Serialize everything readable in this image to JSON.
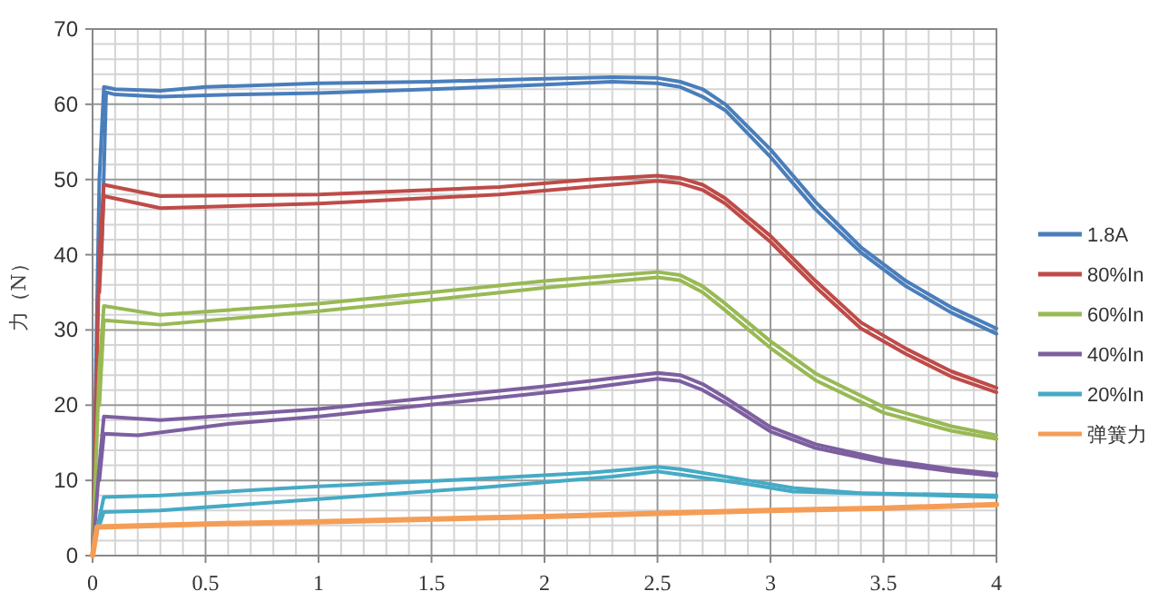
{
  "chart_data": {
    "type": "line",
    "ylabel": "力（N）",
    "xlim": [
      0,
      4
    ],
    "ylim": [
      0,
      70
    ],
    "xticks": [
      0,
      0.5,
      1,
      1.5,
      2,
      2.5,
      3,
      3.5,
      4
    ],
    "yticks": [
      0,
      10,
      20,
      30,
      40,
      50,
      60,
      70
    ],
    "grid": true,
    "legend": "right",
    "marker": "none",
    "line_style": "solid",
    "series": [
      {
        "name": "1.8A",
        "color": "#4a7ebb",
        "x": [
          0,
          0.03,
          0.05,
          0.1,
          0.3,
          0.5,
          1,
          1.5,
          2,
          2.3,
          2.5,
          2.6,
          2.7,
          2.8,
          3,
          3.2,
          3.4,
          3.6,
          3.8,
          4
        ],
        "values": [
          0,
          50,
          62.3,
          62,
          61.8,
          62.3,
          62.8,
          63,
          63.4,
          63.6,
          63.5,
          63,
          62,
          60,
          54,
          47,
          41,
          36.5,
          33,
          30.2
        ]
      },
      {
        "color": "#4a7ebb",
        "x": [
          0.04,
          0.06,
          0.1,
          0.3,
          0.5,
          1,
          1.5,
          2,
          2.3,
          2.5,
          2.6,
          2.7,
          2.8,
          3,
          3.2,
          3.4,
          3.6,
          3.8,
          4
        ],
        "values": [
          40,
          61.6,
          61.3,
          61,
          61.2,
          61.5,
          62,
          62.6,
          63,
          62.8,
          62.3,
          61,
          59.2,
          53,
          46,
          40.3,
          35.8,
          32.3,
          29.5
        ]
      },
      {
        "name": "80%In",
        "color": "#be4b48",
        "x": [
          0,
          0.03,
          0.05,
          0.3,
          1,
          1.8,
          2.2,
          2.5,
          2.6,
          2.7,
          2.8,
          3,
          3.2,
          3.4,
          3.6,
          3.8,
          4
        ],
        "values": [
          0,
          40,
          49.3,
          47.8,
          48,
          49,
          50,
          50.5,
          50.2,
          49.3,
          47.5,
          42.5,
          36.5,
          31,
          27.5,
          24.5,
          22.3
        ]
      },
      {
        "color": "#be4b48",
        "x": [
          0.03,
          0.05,
          0.3,
          1,
          1.8,
          2.3,
          2.5,
          2.6,
          2.7,
          2.8,
          3,
          3.2,
          3.4,
          3.6,
          3.8,
          4
        ],
        "values": [
          35,
          47.8,
          46.2,
          46.8,
          48,
          49.3,
          49.8,
          49.5,
          48.6,
          46.8,
          41.7,
          35.7,
          30.2,
          26.8,
          23.8,
          21.7
        ]
      },
      {
        "name": "60%In",
        "color": "#98b954",
        "x": [
          0,
          0.03,
          0.05,
          0.3,
          1,
          1.5,
          2,
          2.5,
          2.6,
          2.7,
          2.8,
          3,
          3.2,
          3.5,
          3.8,
          4
        ],
        "values": [
          0,
          25,
          33.2,
          32,
          33.5,
          35,
          36.5,
          37.7,
          37.3,
          35.8,
          33.5,
          28.5,
          24.2,
          19.8,
          17.2,
          16
        ]
      },
      {
        "color": "#98b954",
        "x": [
          0.03,
          0.05,
          0.3,
          1,
          1.5,
          2,
          2.5,
          2.6,
          2.7,
          2.8,
          3,
          3.2,
          3.5,
          3.8,
          4
        ],
        "values": [
          20,
          31.3,
          30.7,
          32.5,
          34,
          35.6,
          37,
          36.6,
          35,
          32.6,
          27.6,
          23.3,
          19,
          16.6,
          15.5
        ]
      },
      {
        "name": "40%In",
        "color": "#7d5fa0",
        "x": [
          0,
          0.03,
          0.05,
          0.3,
          1,
          1.5,
          2,
          2.5,
          2.6,
          2.7,
          2.8,
          3,
          3.2,
          3.5,
          3.8,
          4
        ],
        "values": [
          0,
          12,
          18.5,
          18,
          19.5,
          21,
          22.5,
          24.3,
          24,
          22.8,
          21,
          17.1,
          14.8,
          12.8,
          11.5,
          10.9
        ]
      },
      {
        "color": "#7d5fa0",
        "x": [
          0.03,
          0.05,
          0.2,
          0.6,
          1,
          2.2,
          2.5,
          2.6,
          2.7,
          2.8,
          3,
          3.2,
          3.5,
          3.8,
          4
        ],
        "values": [
          10,
          16.2,
          16,
          17.5,
          18.5,
          22.3,
          23.5,
          23.2,
          22,
          20.3,
          16.5,
          14.3,
          12.4,
          11.2,
          10.6
        ]
      },
      {
        "name": "20%In",
        "color": "#46aac5",
        "x": [
          0,
          0.03,
          0.05,
          0.3,
          1,
          1.7,
          2.2,
          2.5,
          2.6,
          2.9,
          3.1,
          3.4,
          4
        ],
        "values": [
          0,
          5,
          7.8,
          8,
          9.2,
          10.2,
          11,
          11.8,
          11.5,
          10,
          9,
          8.3,
          8
        ]
      },
      {
        "color": "#46aac5",
        "x": [
          0.03,
          0.05,
          0.3,
          1,
          1.7,
          2.3,
          2.5,
          2.9,
          3.1,
          4
        ],
        "values": [
          4,
          5.8,
          6,
          7.5,
          9,
          10.5,
          11.2,
          9.5,
          8.5,
          7.8
        ]
      },
      {
        "name": "弹簧力",
        "color": "#f59d56",
        "x": [
          0,
          0.02,
          0.5,
          1,
          2,
          2.5,
          3,
          3.5,
          4
        ],
        "values": [
          0,
          3.8,
          4.2,
          4.5,
          5.2,
          5.6,
          6,
          6.3,
          6.8
        ]
      }
    ]
  }
}
